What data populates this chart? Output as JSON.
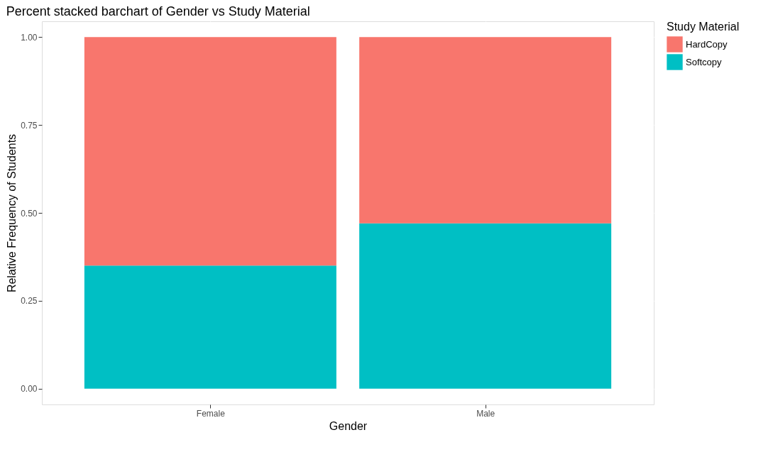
{
  "chart_data": {
    "type": "bar",
    "title": "Percent stacked barchart of Gender vs Study Material",
    "xlabel": "Gender",
    "ylabel": "Relative Frequency of Students",
    "legend_title": "Study Material",
    "categories": [
      "Female",
      "Male"
    ],
    "series": [
      {
        "name": "Softcopy",
        "color": "#00bfc4",
        "values": [
          0.35,
          0.47
        ]
      },
      {
        "name": "HardCopy",
        "color": "#f8766d",
        "values": [
          0.65,
          0.53
        ]
      }
    ],
    "stacked": true,
    "ylim": [
      -0.045,
      1.045
    ],
    "yticks": [
      {
        "value": 0,
        "label": "0.00"
      },
      {
        "value": 0.25,
        "label": "0.25"
      },
      {
        "value": 0.5,
        "label": "0.50"
      },
      {
        "value": 0.75,
        "label": "0.75"
      },
      {
        "value": 1,
        "label": "1.00"
      }
    ],
    "grid": true,
    "legend": "right"
  }
}
